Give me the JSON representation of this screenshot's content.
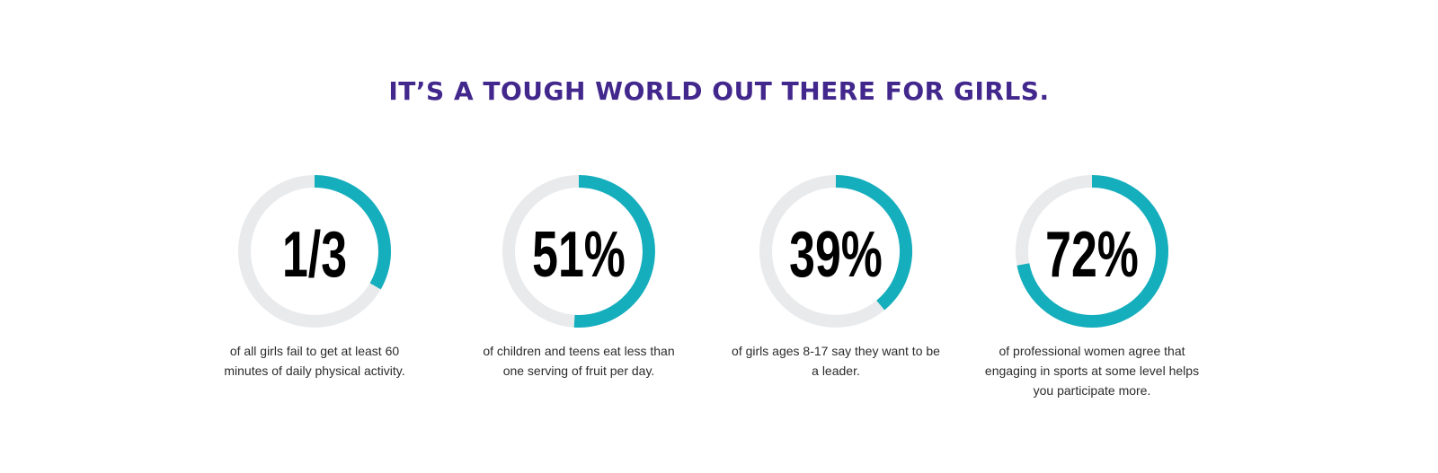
{
  "headline": "IT’S A TOUGH WORLD OUT THERE FOR GIRLS.",
  "colors": {
    "headline": "#42278c",
    "ring_track": "#e9eaec",
    "ring_fill": "#14aebd",
    "number": "#000000"
  },
  "chart_data": {
    "type": "pie",
    "title": "IT’S A TOUGH WORLD OUT THERE FOR GIRLS.",
    "items": [
      {
        "label": "1/3",
        "value": 0.333,
        "description": "of all girls fail to get at least 60 minutes of daily physical activity."
      },
      {
        "label": "51%",
        "value": 0.51,
        "description": "of children and teens eat less than one serving of fruit per day."
      },
      {
        "label": "39%",
        "value": 0.39,
        "description": "of girls ages 8-17 say they want to be a leader."
      },
      {
        "label": "72%",
        "value": 0.72,
        "description": "of professional women agree that engaging in sports at some level helps you participate more."
      }
    ]
  }
}
